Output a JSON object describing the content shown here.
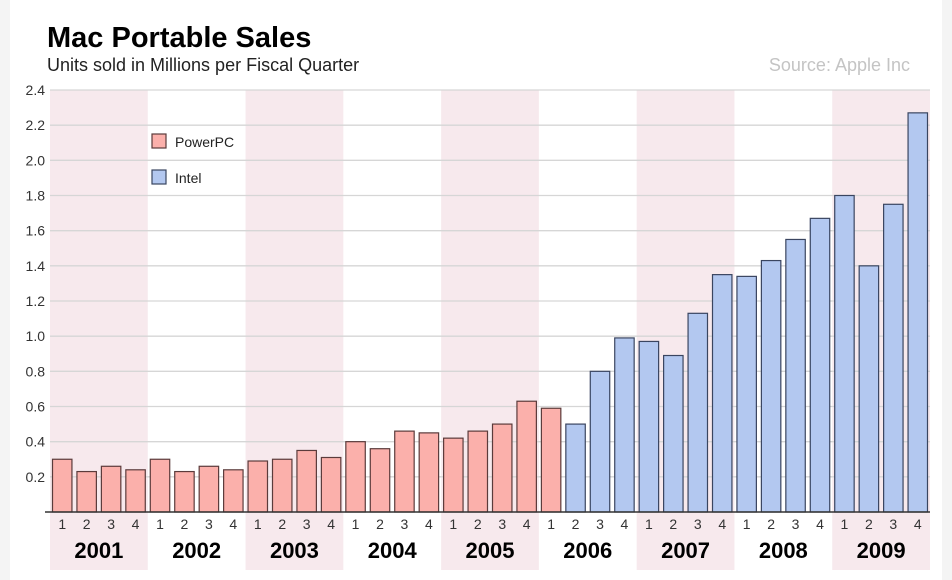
{
  "chart_data": {
    "type": "bar",
    "title": "Mac Portable Sales",
    "subtitle": "Units sold in Millions per Fiscal Quarter",
    "source": "Source: Apple Inc",
    "xlabel": "",
    "ylabel": "",
    "ylim": [
      0,
      2.4
    ],
    "yticks": [
      0.2,
      0.4,
      0.6,
      0.8,
      1.0,
      1.2,
      1.4,
      1.6,
      1.8,
      2.0,
      2.2,
      2.4
    ],
    "ytick_labels": [
      "0.2",
      "0.4",
      "0.6",
      "0.8",
      "1.0",
      "1.2",
      "1.4",
      "1.6",
      "1.8",
      "2.0",
      "2.2",
      "2.4"
    ],
    "grid": true,
    "legend_position": "top-left",
    "years": [
      "2001",
      "2002",
      "2003",
      "2004",
      "2005",
      "2006",
      "2007",
      "2008",
      "2009"
    ],
    "quarter_labels": [
      "1",
      "2",
      "3",
      "4"
    ],
    "series": [
      {
        "name": "PowerPC",
        "color": "#fbb0ab",
        "stroke": "#5b3b3b"
      },
      {
        "name": "Intel",
        "color": "#b3c8f0",
        "stroke": "#3a4560"
      }
    ],
    "bars": [
      {
        "year": "2001",
        "quarter": "1",
        "value": 0.3,
        "series": "PowerPC"
      },
      {
        "year": "2001",
        "quarter": "2",
        "value": 0.23,
        "series": "PowerPC"
      },
      {
        "year": "2001",
        "quarter": "3",
        "value": 0.26,
        "series": "PowerPC"
      },
      {
        "year": "2001",
        "quarter": "4",
        "value": 0.24,
        "series": "PowerPC"
      },
      {
        "year": "2002",
        "quarter": "1",
        "value": 0.3,
        "series": "PowerPC"
      },
      {
        "year": "2002",
        "quarter": "2",
        "value": 0.23,
        "series": "PowerPC"
      },
      {
        "year": "2002",
        "quarter": "3",
        "value": 0.26,
        "series": "PowerPC"
      },
      {
        "year": "2002",
        "quarter": "4",
        "value": 0.24,
        "series": "PowerPC"
      },
      {
        "year": "2003",
        "quarter": "1",
        "value": 0.29,
        "series": "PowerPC"
      },
      {
        "year": "2003",
        "quarter": "2",
        "value": 0.3,
        "series": "PowerPC"
      },
      {
        "year": "2003",
        "quarter": "3",
        "value": 0.35,
        "series": "PowerPC"
      },
      {
        "year": "2003",
        "quarter": "4",
        "value": 0.31,
        "series": "PowerPC"
      },
      {
        "year": "2004",
        "quarter": "1",
        "value": 0.4,
        "series": "PowerPC"
      },
      {
        "year": "2004",
        "quarter": "2",
        "value": 0.36,
        "series": "PowerPC"
      },
      {
        "year": "2004",
        "quarter": "3",
        "value": 0.46,
        "series": "PowerPC"
      },
      {
        "year": "2004",
        "quarter": "4",
        "value": 0.45,
        "series": "PowerPC"
      },
      {
        "year": "2005",
        "quarter": "1",
        "value": 0.42,
        "series": "PowerPC"
      },
      {
        "year": "2005",
        "quarter": "2",
        "value": 0.46,
        "series": "PowerPC"
      },
      {
        "year": "2005",
        "quarter": "3",
        "value": 0.5,
        "series": "PowerPC"
      },
      {
        "year": "2005",
        "quarter": "4",
        "value": 0.63,
        "series": "PowerPC"
      },
      {
        "year": "2006",
        "quarter": "1",
        "value": 0.59,
        "series": "PowerPC"
      },
      {
        "year": "2006",
        "quarter": "2",
        "value": 0.5,
        "series": "Intel"
      },
      {
        "year": "2006",
        "quarter": "3",
        "value": 0.8,
        "series": "Intel"
      },
      {
        "year": "2006",
        "quarter": "4",
        "value": 0.99,
        "series": "Intel"
      },
      {
        "year": "2007",
        "quarter": "1",
        "value": 0.97,
        "series": "Intel"
      },
      {
        "year": "2007",
        "quarter": "2",
        "value": 0.89,
        "series": "Intel"
      },
      {
        "year": "2007",
        "quarter": "3",
        "value": 1.13,
        "series": "Intel"
      },
      {
        "year": "2007",
        "quarter": "4",
        "value": 1.35,
        "series": "Intel"
      },
      {
        "year": "2008",
        "quarter": "1",
        "value": 1.34,
        "series": "Intel"
      },
      {
        "year": "2008",
        "quarter": "2",
        "value": 1.43,
        "series": "Intel"
      },
      {
        "year": "2008",
        "quarter": "3",
        "value": 1.55,
        "series": "Intel"
      },
      {
        "year": "2008",
        "quarter": "4",
        "value": 1.67,
        "series": "Intel"
      },
      {
        "year": "2009",
        "quarter": "1",
        "value": 1.8,
        "series": "Intel"
      },
      {
        "year": "2009",
        "quarter": "2",
        "value": 1.4,
        "series": "Intel"
      },
      {
        "year": "2009",
        "quarter": "3",
        "value": 1.75,
        "series": "Intel"
      },
      {
        "year": "2009",
        "quarter": "4",
        "value": 2.27,
        "series": "Intel"
      }
    ]
  },
  "colors": {
    "band": "#f7e9ed",
    "grid": "#d6d6d6",
    "axis": "#333333"
  }
}
